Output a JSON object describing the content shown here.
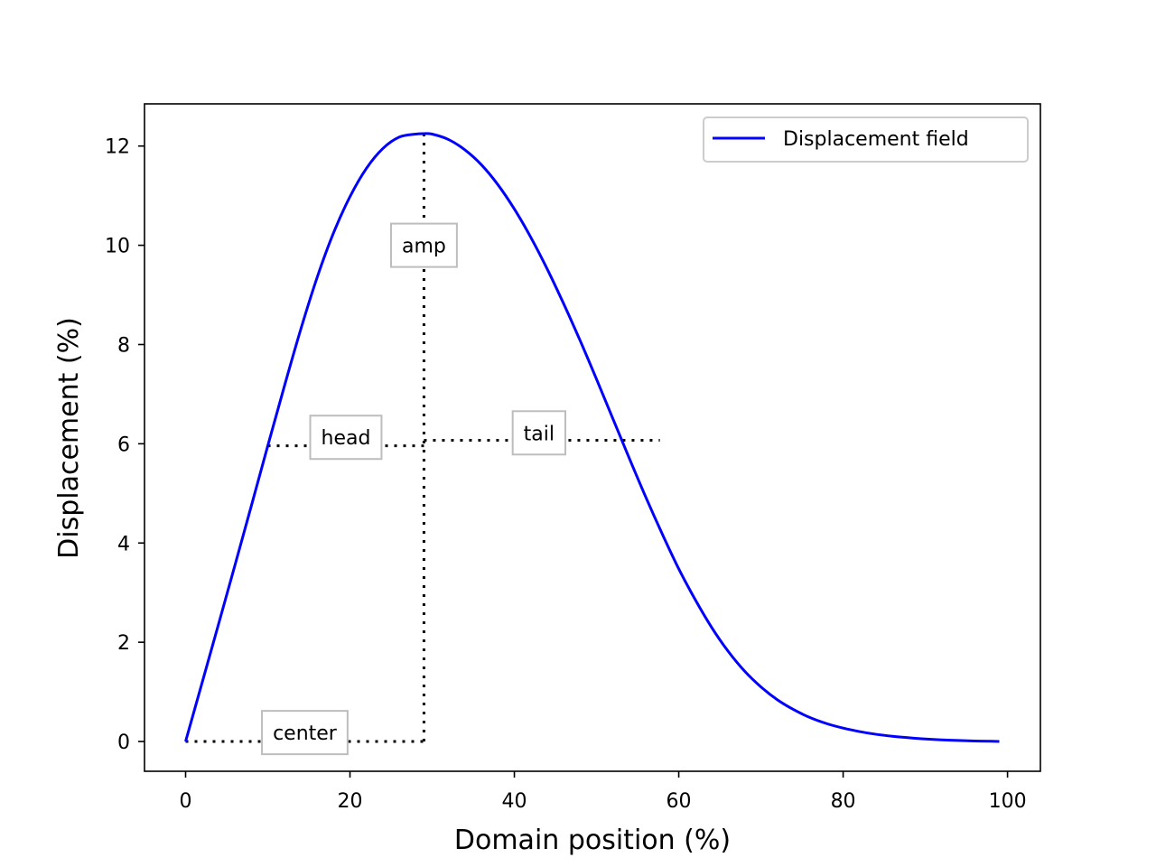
{
  "chart_data": {
    "type": "line",
    "title": "",
    "xlabel": "Domain position  (%)",
    "ylabel": "Displacement  (%)",
    "xlim": [
      -5,
      104
    ],
    "ylim": [
      -0.6,
      12.85
    ],
    "xticks": [
      0,
      20,
      40,
      60,
      80,
      100
    ],
    "yticks": [
      0,
      2,
      4,
      6,
      8,
      10,
      12
    ],
    "xtick_labels": [
      "0",
      "20",
      "40",
      "60",
      "80",
      "100"
    ],
    "ytick_labels": [
      "0",
      "2",
      "4",
      "6",
      "8",
      "10",
      "12"
    ],
    "grid": false,
    "legend": {
      "placement": "upper right"
    },
    "series": [
      {
        "name": "Displacement field",
        "color": "#0000ff",
        "x": [
          0,
          2,
          4,
          6,
          8,
          10,
          12,
          14,
          16,
          18,
          20,
          22,
          24,
          26,
          28,
          29,
          30,
          32,
          34,
          36,
          38,
          40,
          42,
          44,
          46,
          48,
          50,
          52,
          54,
          56,
          58,
          60,
          62,
          64,
          66,
          68,
          70,
          72,
          74,
          76,
          78,
          80,
          82,
          84,
          86,
          88,
          90,
          92,
          94,
          96,
          98,
          99
        ],
        "y": [
          0,
          1.18,
          2.36,
          3.55,
          4.75,
          5.96,
          7.15,
          8.3,
          9.35,
          10.25,
          10.98,
          11.55,
          11.95,
          12.18,
          12.24,
          12.25,
          12.24,
          12.13,
          11.92,
          11.62,
          11.22,
          10.73,
          10.16,
          9.52,
          8.82,
          8.08,
          7.3,
          6.5,
          5.7,
          4.92,
          4.18,
          3.48,
          2.86,
          2.3,
          1.82,
          1.42,
          1.1,
          0.84,
          0.64,
          0.48,
          0.36,
          0.27,
          0.2,
          0.145,
          0.105,
          0.075,
          0.05,
          0.032,
          0.02,
          0.01,
          0.004,
          0
        ]
      }
    ],
    "guides": [
      {
        "from": [
          0,
          0
        ],
        "to": [
          29,
          0
        ]
      },
      {
        "from": [
          29,
          0
        ],
        "to": [
          29,
          12.25
        ]
      },
      {
        "from": [
          10,
          5.96
        ],
        "to": [
          29,
          5.96
        ]
      },
      {
        "from": [
          29,
          6.07
        ],
        "to": [
          57.7,
          6.07
        ]
      }
    ],
    "annotations": [
      {
        "text": "center",
        "x": 14.5,
        "y": 0.18
      },
      {
        "text": "amp",
        "x": 29,
        "y": 10.0
      },
      {
        "text": "head",
        "x": 19.5,
        "y": 6.13
      },
      {
        "text": "tail",
        "x": 43,
        "y": 6.22
      }
    ]
  }
}
